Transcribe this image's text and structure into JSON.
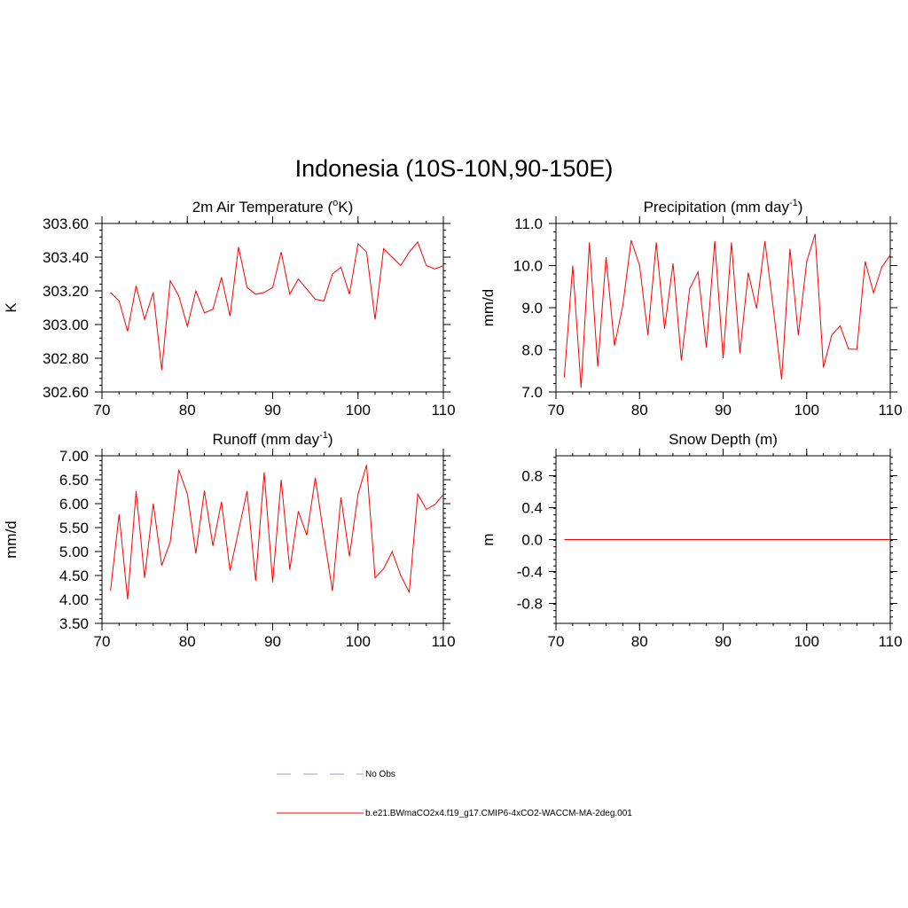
{
  "figure_title": "Indonesia (10S-10N,90-150E)",
  "colors": {
    "model": "#ff0000",
    "obs": "#9999dd"
  },
  "legend": {
    "obs_label": "No Obs",
    "model_label": "b.e21.BWmaCO2x4.f19_g17.CMIP6-4xCO2-WACCM-MA-2deg.001"
  },
  "chart_data": [
    {
      "id": "temp",
      "type": "line",
      "title_main": "2m Air Temperature (",
      "title_sup1": "o",
      "title_after": "K)",
      "ylabel": "K",
      "xlim": [
        70,
        110
      ],
      "ylim": [
        302.6,
        303.6
      ],
      "xticks": [
        70,
        80,
        90,
        100,
        110
      ],
      "xtick_labels": [
        "70",
        "80",
        "90",
        "100",
        "110"
      ],
      "yticks": [
        302.6,
        302.8,
        303.0,
        303.2,
        303.4,
        303.6
      ],
      "ytick_labels": [
        "302.60",
        "302.80",
        "303.00",
        "303.20",
        "303.40",
        "303.60"
      ],
      "x": [
        71,
        72,
        73,
        74,
        75,
        76,
        77,
        78,
        79,
        80,
        81,
        82,
        83,
        84,
        85,
        86,
        87,
        88,
        89,
        90,
        91,
        92,
        93,
        94,
        95,
        96,
        97,
        98,
        99,
        100,
        101,
        102,
        103,
        104,
        105,
        106,
        107,
        108,
        109,
        110
      ],
      "y": [
        303.19,
        303.14,
        302.96,
        303.23,
        303.03,
        303.19,
        302.73,
        303.26,
        303.17,
        302.99,
        303.2,
        303.07,
        303.09,
        303.28,
        303.05,
        303.46,
        303.22,
        303.18,
        303.19,
        303.22,
        303.43,
        303.18,
        303.27,
        303.21,
        303.15,
        303.14,
        303.3,
        303.34,
        303.18,
        303.48,
        303.43,
        303.03,
        303.45,
        303.4,
        303.35,
        303.43,
        303.49,
        303.35,
        303.33,
        303.35
      ]
    },
    {
      "id": "precip",
      "type": "line",
      "title_main": "Precipitation (mm day",
      "title_sup1": "-1",
      "title_after": ")",
      "ylabel": "mm/d",
      "xlim": [
        70,
        110
      ],
      "ylim": [
        7.0,
        11.0
      ],
      "xticks": [
        70,
        80,
        90,
        100,
        110
      ],
      "xtick_labels": [
        "70",
        "80",
        "90",
        "100",
        "110"
      ],
      "yticks": [
        7.0,
        8.0,
        9.0,
        10.0,
        11.0
      ],
      "ytick_labels": [
        "7.0",
        "8.0",
        "9.0",
        "10.0",
        "11.0"
      ],
      "x": [
        71,
        72,
        73,
        74,
        75,
        76,
        77,
        78,
        79,
        80,
        81,
        82,
        83,
        84,
        85,
        86,
        87,
        88,
        89,
        90,
        91,
        92,
        93,
        94,
        95,
        96,
        97,
        98,
        99,
        100,
        101,
        102,
        103,
        104,
        105,
        106,
        107,
        108,
        109,
        110
      ],
      "y": [
        7.35,
        10.0,
        7.1,
        10.55,
        7.6,
        10.2,
        8.1,
        9.05,
        10.6,
        10.0,
        8.35,
        10.55,
        8.5,
        10.05,
        7.75,
        9.45,
        9.85,
        8.05,
        10.58,
        7.8,
        10.55,
        7.92,
        9.83,
        8.98,
        10.58,
        9.0,
        7.3,
        10.4,
        8.35,
        10.1,
        10.75,
        7.58,
        8.35,
        8.57,
        8.02,
        8.01,
        10.1,
        9.35,
        9.97,
        10.25
      ]
    },
    {
      "id": "runoff",
      "type": "line",
      "title_main": "Runoff (mm day",
      "title_sup1": "-1",
      "title_after": ")",
      "ylabel": "mm/d",
      "xlim": [
        70,
        110
      ],
      "ylim": [
        3.5,
        7.0
      ],
      "xticks": [
        70,
        80,
        90,
        100,
        110
      ],
      "xtick_labels": [
        "70",
        "80",
        "90",
        "100",
        "110"
      ],
      "yticks": [
        3.5,
        4.0,
        4.5,
        5.0,
        5.5,
        6.0,
        6.5,
        7.0
      ],
      "ytick_labels": [
        "3.50",
        "4.00",
        "4.50",
        "5.00",
        "5.50",
        "6.00",
        "6.50",
        "7.00"
      ],
      "x": [
        71,
        72,
        73,
        74,
        75,
        76,
        77,
        78,
        79,
        80,
        81,
        82,
        83,
        84,
        85,
        86,
        87,
        88,
        89,
        90,
        91,
        92,
        93,
        94,
        95,
        96,
        97,
        98,
        99,
        100,
        101,
        102,
        103,
        104,
        105,
        106,
        107,
        108,
        109,
        110
      ],
      "y": [
        4.18,
        5.78,
        4.0,
        6.26,
        4.45,
        6.0,
        4.71,
        5.2,
        6.71,
        6.2,
        4.96,
        6.27,
        5.12,
        6.04,
        4.6,
        5.43,
        6.26,
        4.39,
        6.66,
        4.36,
        6.5,
        4.62,
        5.84,
        5.34,
        6.54,
        5.32,
        4.18,
        6.13,
        4.9,
        6.2,
        6.81,
        4.45,
        4.64,
        5.0,
        4.5,
        4.15,
        6.2,
        5.88,
        5.98,
        6.19
      ]
    },
    {
      "id": "snow",
      "type": "line",
      "title_main": "Snow Depth (m)",
      "title_sup1": "",
      "title_after": "",
      "ylabel": "m",
      "xlim": [
        70,
        110
      ],
      "ylim": [
        -1.05,
        1.05
      ],
      "xticks": [
        70,
        80,
        90,
        100,
        110
      ],
      "xtick_labels": [
        "70",
        "80",
        "90",
        "100",
        "110"
      ],
      "yticks": [
        -0.8,
        -0.4,
        0.0,
        0.4,
        0.8
      ],
      "ytick_labels": [
        "-0.8",
        "-0.4",
        "0.0",
        "0.4",
        "0.8"
      ],
      "x": [
        71,
        110
      ],
      "y": [
        0.0,
        0.0
      ]
    }
  ]
}
